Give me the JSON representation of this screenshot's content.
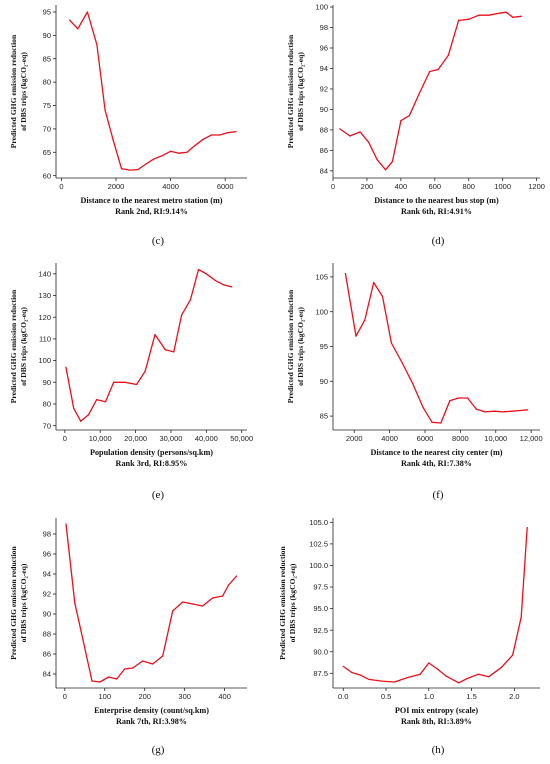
{
  "colors": {
    "line": "#e8101a",
    "axis": "#222222"
  },
  "chart_data": [
    {
      "panel": "(c)",
      "type": "line",
      "ylabel": [
        "Predicted GHG emission reduction",
        "of DBS trips (kgCO₂-eq)"
      ],
      "xlabel": "Distance to the nearest metro station (m)",
      "subtitle": "Rank 2nd, RI:9.14%",
      "xlim": [
        -200,
        6800
      ],
      "ylim": [
        59.5,
        96.5
      ],
      "xticks": [
        0,
        2000,
        4000,
        6000
      ],
      "xtick_labels": [
        "0",
        "2000",
        "4000",
        "6000"
      ],
      "yticks": [
        60,
        65,
        70,
        75,
        80,
        85,
        90,
        95
      ],
      "ytick_labels": [
        "60",
        "65",
        "70",
        "75",
        "80",
        "85",
        "90",
        "95"
      ],
      "x": [
        300,
        600,
        950,
        1300,
        1600,
        1900,
        2200,
        2500,
        2800,
        3100,
        3400,
        3700,
        4000,
        4300,
        4600,
        4900,
        5200,
        5500,
        5800,
        6100,
        6400
      ],
      "y": [
        93.3,
        91.4,
        95.0,
        88.0,
        74.0,
        67.5,
        61.5,
        61.2,
        61.3,
        62.5,
        63.6,
        64.3,
        65.2,
        64.8,
        65.0,
        66.5,
        67.8,
        68.7,
        68.7,
        69.2,
        69.4
      ]
    },
    {
      "panel": "(d)",
      "type": "line",
      "ylabel": [
        "Predicted GHG emission reduction",
        "of DBS trips (kgCO₂-eq)"
      ],
      "xlabel": "Distance to the nearest bus stop (m)",
      "subtitle": "Rank 6th, RI:4.91%",
      "xlim": [
        0,
        1220
      ],
      "ylim": [
        83.3,
        100.2
      ],
      "xticks": [
        0,
        200,
        400,
        600,
        800,
        1000,
        1200
      ],
      "xtick_labels": [
        "0",
        "200",
        "400",
        "600",
        "800",
        "1000",
        "1200"
      ],
      "yticks": [
        84,
        86,
        88,
        90,
        92,
        94,
        96,
        98,
        100
      ],
      "ytick_labels": [
        "84",
        "86",
        "88",
        "90",
        "92",
        "94",
        "96",
        "98",
        "100"
      ],
      "x": [
        40,
        100,
        160,
        210,
        260,
        310,
        350,
        400,
        450,
        510,
        570,
        620,
        680,
        740,
        800,
        860,
        920,
        980,
        1020,
        1060,
        1110
      ],
      "y": [
        88.1,
        87.4,
        87.8,
        86.8,
        85.1,
        84.1,
        84.9,
        88.9,
        89.4,
        91.6,
        93.7,
        93.9,
        95.3,
        98.7,
        98.8,
        99.2,
        99.2,
        99.4,
        99.5,
        99.0,
        99.1
      ]
    },
    {
      "panel": "(e)",
      "type": "line",
      "ylabel": [
        "Predicted GHG emission reduction",
        "of DBS trips (kgCO₂-eq)"
      ],
      "xlabel": "Population density (persons/sq.km)",
      "subtitle": "Rank 3rd, RI:8.95%",
      "xlim": [
        -2500,
        51500
      ],
      "ylim": [
        68,
        145
      ],
      "xticks": [
        0,
        10000,
        20000,
        30000,
        40000,
        50000
      ],
      "xtick_labels": [
        "0",
        "10,000",
        "20,000",
        "30,000",
        "40,000",
        "50,000"
      ],
      "yticks": [
        70,
        80,
        90,
        100,
        110,
        120,
        130,
        140
      ],
      "ytick_labels": [
        "70",
        "80",
        "90",
        "100",
        "110",
        "120",
        "130",
        "140"
      ],
      "x": [
        300,
        2500,
        4500,
        6700,
        9000,
        11500,
        13800,
        17000,
        20300,
        22700,
        25500,
        28400,
        30800,
        33000,
        35500,
        37800,
        40000,
        42500,
        44800,
        47200
      ],
      "y": [
        97,
        78,
        72,
        75,
        82,
        81,
        90,
        90,
        89,
        95,
        112,
        105,
        104,
        121,
        128,
        142,
        140,
        137,
        135,
        134
      ]
    },
    {
      "panel": "(f)",
      "type": "line",
      "ylabel": [
        "Predicted GHG emission reduction",
        "of DBS trips (kgCO₂-eq)"
      ],
      "xlabel": "Distance to the nearest city center (m)",
      "subtitle": "Rank 4th, RI:7.38%",
      "xlim": [
        800,
        12500
      ],
      "ylim": [
        83,
        107
      ],
      "xticks": [
        2000,
        4000,
        6000,
        8000,
        10000,
        12000
      ],
      "xtick_labels": [
        "2000",
        "4000",
        "6000",
        "8000",
        "10,000",
        "12,000"
      ],
      "yticks": [
        85,
        90,
        95,
        100,
        105
      ],
      "ytick_labels": [
        "85",
        "90",
        "95",
        "100",
        "105"
      ],
      "x": [
        1500,
        2100,
        2600,
        3100,
        3600,
        4100,
        4700,
        5300,
        5900,
        6400,
        6900,
        7400,
        7900,
        8400,
        8900,
        9400,
        9900,
        10400,
        10900,
        11400,
        11800
      ],
      "y": [
        105.5,
        96.5,
        98.8,
        104.2,
        102.2,
        95.5,
        92.7,
        89.7,
        86.2,
        84.1,
        84.0,
        87.2,
        87.6,
        87.6,
        86.0,
        85.6,
        85.7,
        85.6,
        85.7,
        85.8,
        85.9
      ]
    },
    {
      "panel": "(g)",
      "type": "line",
      "ylabel": [
        "Predicted GHG emission reduction",
        "of DBS trips (kgCO₂-eq)"
      ],
      "xlabel": "Enterprise density (count/sq.km)",
      "subtitle": "Rank 7th, RI:3.98%",
      "xlim": [
        -22,
        456
      ],
      "ylim": [
        82.6,
        99.6
      ],
      "xticks": [
        0,
        100,
        200,
        300,
        400
      ],
      "xtick_labels": [
        "0",
        "100",
        "200",
        "300",
        "400"
      ],
      "yticks": [
        84,
        86,
        88,
        90,
        92,
        94,
        96,
        98
      ],
      "ytick_labels": [
        "84",
        "86",
        "88",
        "90",
        "92",
        "94",
        "96",
        "98"
      ],
      "x": [
        3,
        25,
        45,
        68,
        88,
        110,
        130,
        150,
        170,
        195,
        220,
        245,
        270,
        295,
        320,
        345,
        370,
        395,
        410,
        430
      ],
      "y": [
        99.0,
        91.1,
        87.5,
        83.3,
        83.2,
        83.7,
        83.5,
        84.5,
        84.6,
        85.3,
        85.0,
        85.8,
        90.3,
        91.2,
        91.0,
        90.8,
        91.6,
        91.8,
        92.9,
        93.8
      ]
    },
    {
      "panel": "(h)",
      "type": "line",
      "ylabel": [
        "Predicted GHG emission reduction",
        "of DBS trips (kgCO₂-eq)"
      ],
      "xlabel": "POI mix entropy (scale)",
      "subtitle": "Rank 8th, RI:3.89%",
      "xlim": [
        -0.12,
        2.3
      ],
      "ylim": [
        85.8,
        105.5
      ],
      "xticks": [
        0.0,
        0.5,
        1.0,
        1.5,
        2.0
      ],
      "xtick_labels": [
        "0.0",
        "0.5",
        "1.0",
        "1.5",
        "2.0"
      ],
      "yticks": [
        87.5,
        90.0,
        92.5,
        95.0,
        97.5,
        100.0,
        102.5,
        105.0
      ],
      "ytick_labels": [
        "87.5",
        "90.0",
        "92.5",
        "95.0",
        "97.5",
        "100.0",
        "102.5",
        "105.0"
      ],
      "x": [
        0.0,
        0.1,
        0.2,
        0.3,
        0.45,
        0.6,
        0.75,
        0.9,
        1.0,
        1.1,
        1.2,
        1.35,
        1.45,
        1.58,
        1.7,
        1.85,
        1.98,
        2.08,
        2.15
      ],
      "y": [
        88.3,
        87.6,
        87.3,
        86.8,
        86.6,
        86.5,
        87.0,
        87.4,
        88.7,
        88.0,
        87.2,
        86.4,
        86.9,
        87.4,
        87.1,
        88.2,
        89.6,
        94.0,
        104.4
      ]
    }
  ]
}
